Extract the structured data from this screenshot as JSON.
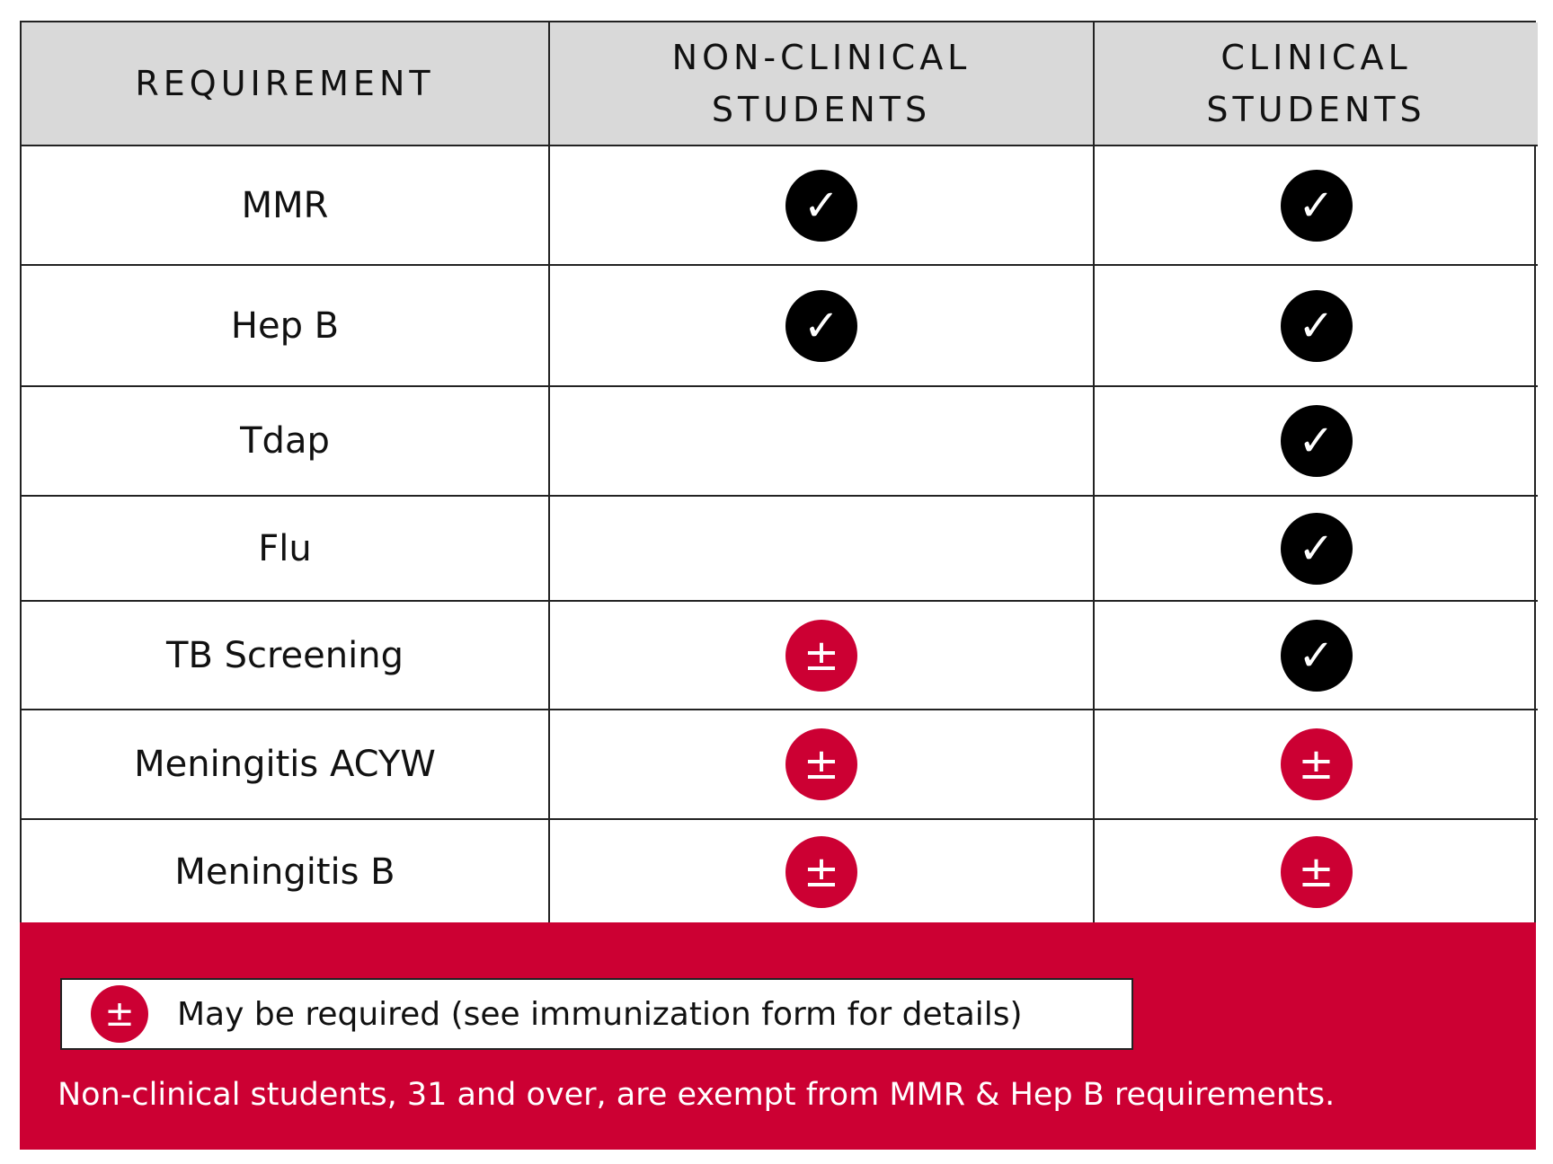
{
  "table": {
    "header": [
      "REQUIREMENT",
      "NON-CLINICAL STUDENTS",
      "CLINICAL STUDENTS"
    ],
    "rows": [
      [
        "MMR",
        "✓",
        "✓"
      ],
      [
        "Hep B",
        "✓",
        "✓"
      ],
      [
        "Tdap",
        null,
        "✓"
      ],
      [
        "Flu",
        null,
        "✓"
      ],
      [
        "TB Screening",
        "±",
        "✓"
      ],
      [
        "Meningitis ACYW",
        "±",
        "±"
      ],
      [
        "Meningitis B",
        "±",
        "±"
      ]
    ]
  },
  "legend": {
    "symbol": "±",
    "text": "May be required (see immunization form for details)"
  },
  "footnote": "Non-clinical students, 31 and over, are exempt from MMR & Hep B requirements."
}
